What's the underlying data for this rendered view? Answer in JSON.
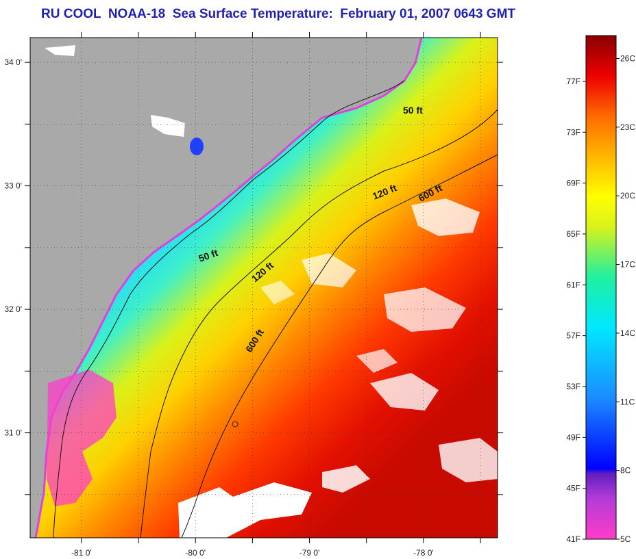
{
  "title": "RU COOL  NOAA-18  Sea Surface Temperature:  February 01, 2007 0643 GMT",
  "colors": {
    "land": "#a9a9a9",
    "clouds": "#ffffff",
    "title": "#1f1fb0"
  },
  "map": {
    "lon_range": [
      -81.45,
      -77.35
    ],
    "lat_range": [
      30.15,
      34.2
    ],
    "lon_ticks": [
      {
        "value": -81,
        "label": "-81 0'"
      },
      {
        "value": -80,
        "label": "-80 0'"
      },
      {
        "value": -79,
        "label": "-79 0'"
      },
      {
        "value": -78,
        "label": "-78 0'"
      }
    ],
    "lat_ticks": [
      {
        "value": 34,
        "label": "34 0'"
      },
      {
        "value": 33,
        "label": "33 0'"
      },
      {
        "value": 32,
        "label": "32 0'"
      },
      {
        "value": 31,
        "label": "31 0'"
      }
    ],
    "contour_labels": [
      {
        "name": "contour-label-50ft-north",
        "text": "50 ft"
      },
      {
        "name": "contour-label-120ft-north",
        "text": "120 ft"
      },
      {
        "name": "contour-label-600ft-north",
        "text": "600 ft"
      },
      {
        "name": "contour-label-50ft-south",
        "text": "50 ft"
      },
      {
        "name": "contour-label-120ft-south",
        "text": "120 ft"
      },
      {
        "name": "contour-label-600ft-south",
        "text": "600 ft"
      }
    ]
  },
  "colorbar": {
    "celsius_range": [
      5,
      27
    ],
    "fahrenheit_labels": [
      "77F",
      "73F",
      "69F",
      "65F",
      "61F",
      "57F",
      "53F",
      "49F",
      "45F",
      "41F"
    ],
    "celsius_labels": [
      "26C",
      "23C",
      "20C",
      "17C",
      "14C",
      "11C",
      "8C",
      "5C"
    ]
  }
}
